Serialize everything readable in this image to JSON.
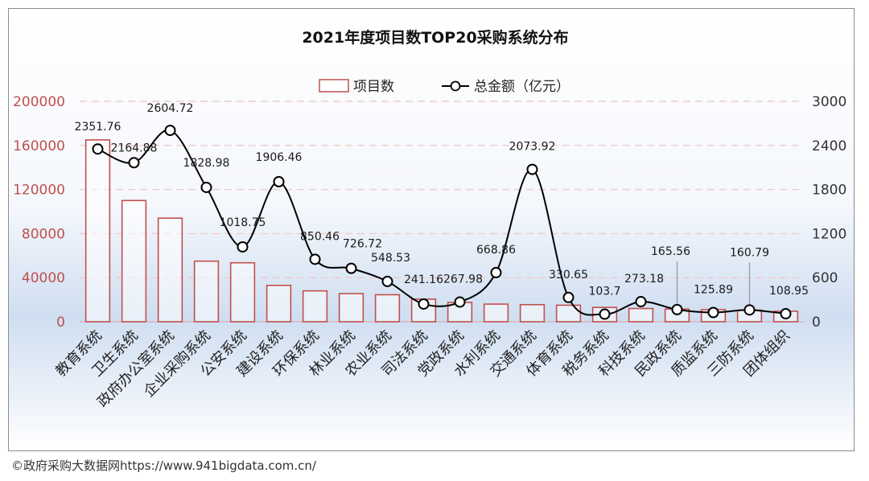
{
  "chart_data": {
    "type": "bar",
    "title": "2021年度项目数TOP20采购系统分布",
    "categories": [
      "教育系统",
      "卫生系统",
      "政府办公室系统",
      "企业采购系统",
      "公安系统",
      "建设系统",
      "环保系统",
      "林业系统",
      "农业系统",
      "司法系统",
      "党政系统",
      "水利系统",
      "交通系统",
      "体育系统",
      "税务系统",
      "科技系统",
      "民政系统",
      "质监系统",
      "三防系统",
      "团体组织"
    ],
    "series": [
      {
        "name": "项目数",
        "type": "bar",
        "axis": "left",
        "values": [
          165000,
          110000,
          94000,
          55000,
          53500,
          33000,
          28000,
          25500,
          24500,
          20500,
          17500,
          16000,
          15500,
          15000,
          13000,
          12000,
          11500,
          11000,
          10500,
          9500
        ]
      },
      {
        "name": "总金额（亿元）",
        "type": "line",
        "axis": "right",
        "values": [
          2351.76,
          2164.88,
          2604.72,
          1828.98,
          1018.75,
          1906.46,
          850.46,
          726.72,
          548.53,
          241.16,
          267.98,
          668.86,
          2073.92,
          330.65,
          103.7,
          273.18,
          165.56,
          125.89,
          160.79,
          108.95
        ],
        "labels": [
          "2351.76",
          "2164.88",
          "2604.72",
          "1828.98",
          "1018.75",
          "1906.46",
          "850.46",
          "726.72",
          "548.53",
          "241.16",
          "267.98",
          "668.86",
          "2073.92",
          "330.65",
          "103.7",
          "273.18",
          "165.56",
          "125.89",
          "160.79",
          "108.95"
        ]
      }
    ],
    "left_axis": {
      "min": 0,
      "max": 200000,
      "ticks": [
        "0",
        "40000",
        "80000",
        "120000",
        "160000",
        "200000"
      ]
    },
    "right_axis": {
      "min": 0,
      "max": 3000,
      "ticks": [
        "0",
        "600",
        "1200",
        "1800",
        "2400",
        "3000"
      ]
    },
    "legend_position": "top-center",
    "grid": "dashed horizontal"
  },
  "colors": {
    "bar_edge": "#c0504d",
    "left_axis_text": "#c0504d",
    "line": "#000000",
    "grid": "#f2c9c9",
    "bg_top": "#ffffff",
    "bg_mid": "#cddcf0"
  },
  "footer": "©政府采购大数据网https://www.941bigdata.com.cn/"
}
